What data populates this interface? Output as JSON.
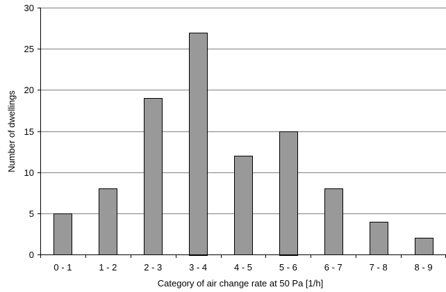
{
  "chart_data": {
    "type": "bar",
    "categories": [
      "0 - 1",
      "1 - 2",
      "2 - 3",
      "3 - 4",
      "4 - 5",
      "5 - 6",
      "6 - 7",
      "7 - 8",
      "8 - 9"
    ],
    "values": [
      5,
      8,
      19,
      27,
      12,
      15,
      8,
      4,
      2
    ],
    "xlabel": "Category of air change rate at 50 Pa [1/h]",
    "ylabel": "Number of dwellings",
    "ylim": [
      0,
      30
    ],
    "yticks": [
      0,
      5,
      10,
      15,
      20,
      25,
      30
    ],
    "grid": true,
    "bar_color": "#999999",
    "bar_edge_color": "#000000",
    "grid_color": "#808080"
  }
}
